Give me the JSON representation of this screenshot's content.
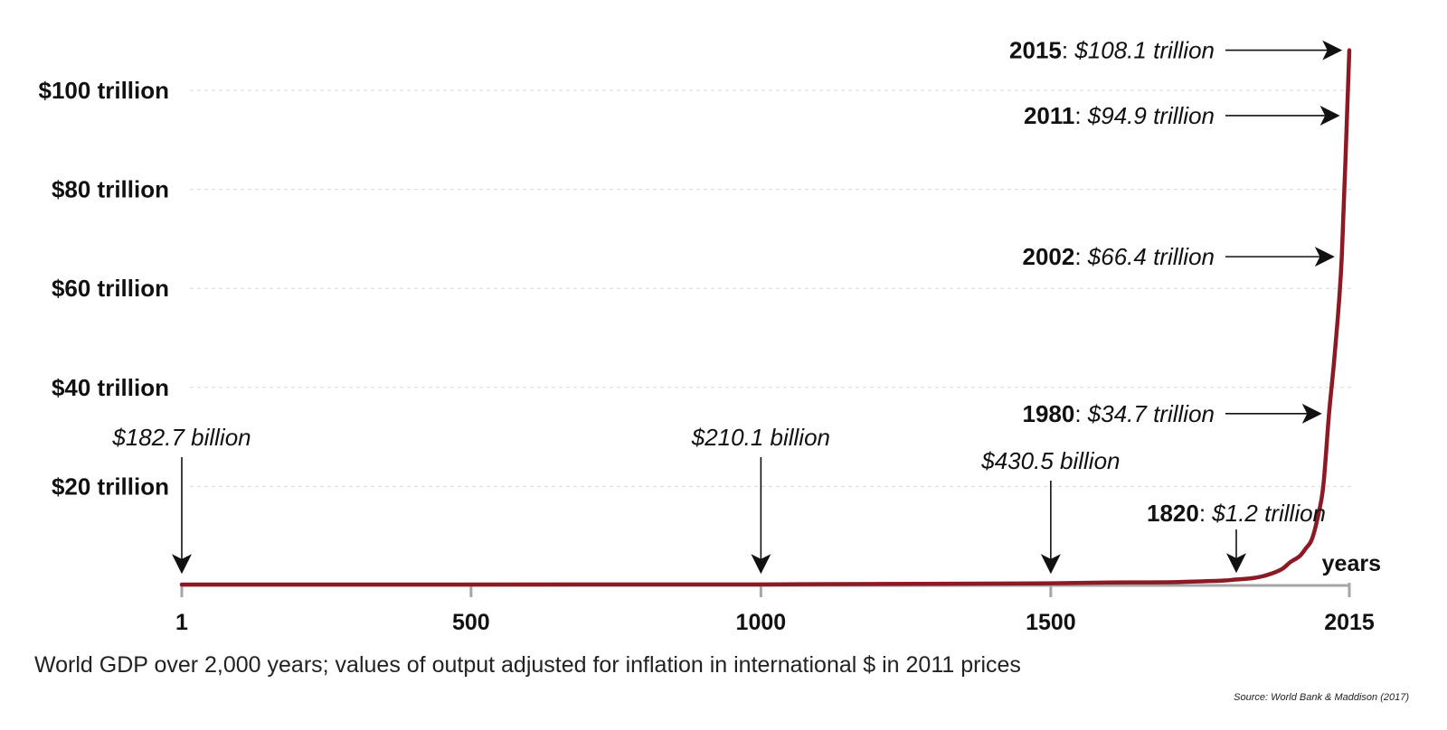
{
  "chart_data": {
    "type": "line",
    "title": "",
    "xlabel": "years",
    "ylabel": "",
    "xlim": [
      1,
      2015
    ],
    "ylim": [
      0,
      110
    ],
    "y_unit": "trillion",
    "grid": true,
    "x_ticks": [
      {
        "value": 1,
        "label": "1"
      },
      {
        "value": 500,
        "label": "500"
      },
      {
        "value": 1000,
        "label": "1000"
      },
      {
        "value": 1500,
        "label": "1500"
      },
      {
        "value": 2015,
        "label": "2015"
      }
    ],
    "y_ticks": [
      {
        "value": 20,
        "label": "$20 trillion"
      },
      {
        "value": 40,
        "label": "$40 trillion"
      },
      {
        "value": 60,
        "label": "$60 trillion"
      },
      {
        "value": 80,
        "label": "$80 trillion"
      },
      {
        "value": 100,
        "label": "$100 trillion"
      }
    ],
    "series": [
      {
        "color": "#8b1a24",
        "x": [
          1,
          1000,
          1500,
          1600,
          1700,
          1750,
          1800,
          1820,
          1850,
          1870,
          1900,
          1913,
          1930,
          1940,
          1950,
          1960,
          1970,
          1980,
          1990,
          2002,
          2011,
          2015
        ],
        "y": [
          0.1827,
          0.2101,
          0.4305,
          0.6,
          0.64,
          0.8,
          1.0,
          1.2,
          1.5,
          2.0,
          3.4,
          4.7,
          6.0,
          7.5,
          9.2,
          13.5,
          20.0,
          34.7,
          47.0,
          66.4,
          94.9,
          108.1
        ]
      }
    ],
    "annotations": [
      {
        "year": "",
        "value": "$182.7 billion",
        "x": 1,
        "y": 0.1827,
        "direction": "down"
      },
      {
        "year": "",
        "value": "$210.1 billion",
        "x": 1000,
        "y": 0.2101,
        "direction": "down"
      },
      {
        "year": "",
        "value": "$430.5 billion",
        "x": 1500,
        "y": 0.4305,
        "direction": "down"
      },
      {
        "year": "1820",
        "value": "$1.2 trillion",
        "x": 1820,
        "y": 1.2,
        "direction": "down"
      },
      {
        "year": "1980",
        "value": "$34.7 trillion",
        "x": 1980,
        "y": 34.7,
        "direction": "right"
      },
      {
        "year": "2002",
        "value": "$66.4 trillion",
        "x": 2002,
        "y": 66.4,
        "direction": "right"
      },
      {
        "year": "2011",
        "value": "$94.9 trillion",
        "x": 2011,
        "y": 94.9,
        "direction": "right"
      },
      {
        "year": "2015",
        "value": "$108.1 trillion",
        "x": 2015,
        "y": 108.1,
        "direction": "right"
      }
    ]
  },
  "caption": "World GDP over 2,000 years; values of output adjusted for inflation in international $ in 2011 prices",
  "source": "Source: World Bank & Maddison (2017)"
}
